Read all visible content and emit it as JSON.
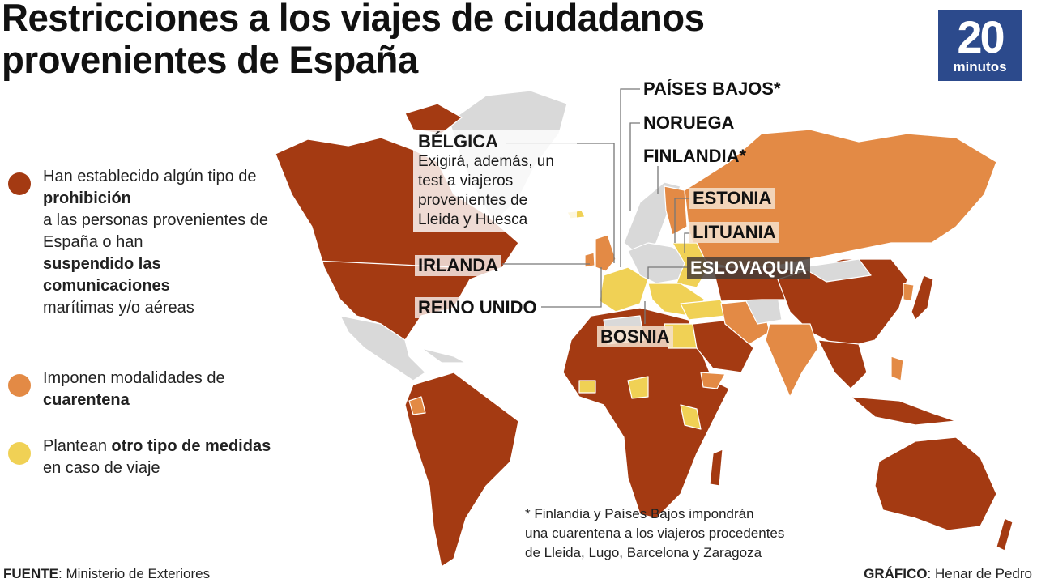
{
  "title": {
    "line1": "Restricciones a los viajes de ciudadanos",
    "line2": "provenientes de España"
  },
  "logo": {
    "number": "20",
    "word": "minutos",
    "color": "#2c4a8c"
  },
  "colors": {
    "prohibition": "#a43a12",
    "quarantine": "#e38a45",
    "other": "#f0d155",
    "no_data": "#d9d9d9"
  },
  "legend": [
    {
      "parts": [
        {
          "t": "Han establecido algún tipo de ",
          "b": false
        },
        {
          "t": "prohibición",
          "b": true
        },
        {
          "t": " a las personas provenientes de España o han ",
          "b": false
        },
        {
          "t": "suspendido las comunicaciones",
          "b": true
        },
        {
          "t": " marítimas y/o aéreas",
          "b": false
        }
      ]
    },
    {
      "parts": [
        {
          "t": "Imponen modalidades de ",
          "b": false
        },
        {
          "t": "cuarentena",
          "b": true
        }
      ]
    },
    {
      "parts": [
        {
          "t": "Plantean ",
          "b": false
        },
        {
          "t": "otro tipo de medidas",
          "b": true
        },
        {
          "t": " en caso de viaje",
          "b": false
        }
      ]
    }
  ],
  "callouts": {
    "paises_bajos": "PAÍSES BAJOS*",
    "noruega": "NORUEGA",
    "finlandia": "FINLANDIA*",
    "estonia": "ESTONIA",
    "lituania": "LITUANIA",
    "eslovaquia": "ESLOVAQUIA",
    "belgica": {
      "name": "BÉLGICA",
      "note": "Exigirá, además, un test a viajeros provenientes de Lleida y Huesca"
    },
    "irlanda": "IRLANDA",
    "reino_unido": "REINO UNIDO",
    "bosnia": "BOSNIA"
  },
  "footnote": [
    "* Finlandia y Países Bajos impondrán",
    "una cuarentena a los viajeros procedentes",
    "de Lleida, Lugo, Barcelona y Zaragoza"
  ],
  "footer": {
    "source_label": "FUENTE",
    "source": ": Ministerio de Exteriores",
    "credit_label": "GRÁFICO",
    "credit": ": Henar de Pedro"
  }
}
